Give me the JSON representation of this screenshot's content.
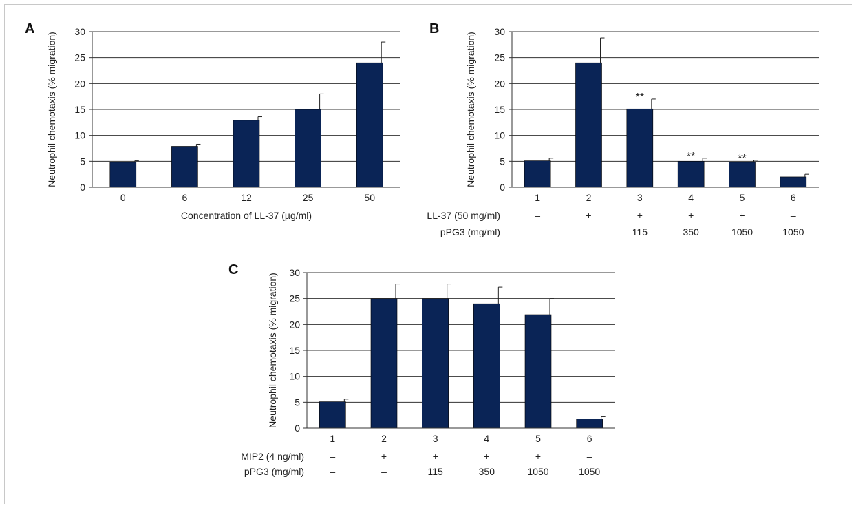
{
  "colors": {
    "bar": "#0a2456",
    "grid": "#333333",
    "text": "#222222"
  },
  "chart_data": [
    {
      "panel": "A",
      "type": "bar",
      "ylabel": "Neutrophil chemotaxis (% migration)",
      "xlabel": "Concentration of LL-37 (µg/ml)",
      "ylim": [
        0,
        30
      ],
      "yticks": [
        "0",
        "5",
        "10",
        "15",
        "20",
        "25",
        "30"
      ],
      "grid": true,
      "categories": [
        "0",
        "6",
        "12",
        "25",
        "50"
      ],
      "values": [
        4.8,
        7.9,
        12.9,
        15.0,
        24.0
      ],
      "errors": [
        0.3,
        0.4,
        0.7,
        3.0,
        4.0
      ],
      "annotations": [
        "",
        "",
        "",
        "",
        ""
      ],
      "condition_rows": []
    },
    {
      "panel": "B",
      "type": "bar",
      "ylabel": "Neutrophil chemotaxis (% migration)",
      "xlabel": "",
      "ylim": [
        0,
        30
      ],
      "yticks": [
        "0",
        "5",
        "10",
        "15",
        "20",
        "25",
        "30"
      ],
      "grid": true,
      "categories": [
        "1",
        "2",
        "3",
        "4",
        "5",
        "6"
      ],
      "values": [
        5.1,
        24.0,
        15.1,
        5.0,
        4.8,
        2.0
      ],
      "errors": [
        0.5,
        4.8,
        1.9,
        0.6,
        0.4,
        0.5
      ],
      "annotations": [
        "",
        "",
        "**",
        "**",
        "**",
        ""
      ],
      "condition_rows": [
        {
          "label": "LL-37 (50 mg/ml)",
          "values": [
            "–",
            "+",
            "+",
            "+",
            "+",
            "–"
          ]
        },
        {
          "label": "pPG3 (mg/ml)",
          "values": [
            "–",
            "–",
            "115",
            "350",
            "1050",
            "1050"
          ]
        }
      ]
    },
    {
      "panel": "C",
      "type": "bar",
      "ylabel": "Neutrophil chemotaxis (% migration)",
      "xlabel": "",
      "ylim": [
        0,
        30
      ],
      "yticks": [
        "0",
        "5",
        "10",
        "15",
        "20",
        "25",
        "30"
      ],
      "grid": true,
      "categories": [
        "1",
        "2",
        "3",
        "4",
        "5",
        "6"
      ],
      "values": [
        5.1,
        25.0,
        25.0,
        24.0,
        21.9,
        1.8
      ],
      "errors": [
        0.5,
        2.8,
        2.8,
        3.2,
        3.1,
        0.4
      ],
      "annotations": [
        "",
        "",
        "",
        "",
        "",
        ""
      ],
      "condition_rows": [
        {
          "label": "MIP2 (4 ng/ml)",
          "values": [
            "–",
            "+",
            "+",
            "+",
            "+",
            "–"
          ]
        },
        {
          "label": "pPG3 (mg/ml)",
          "values": [
            "–",
            "–",
            "115",
            "350",
            "1050",
            "1050"
          ]
        }
      ]
    }
  ]
}
